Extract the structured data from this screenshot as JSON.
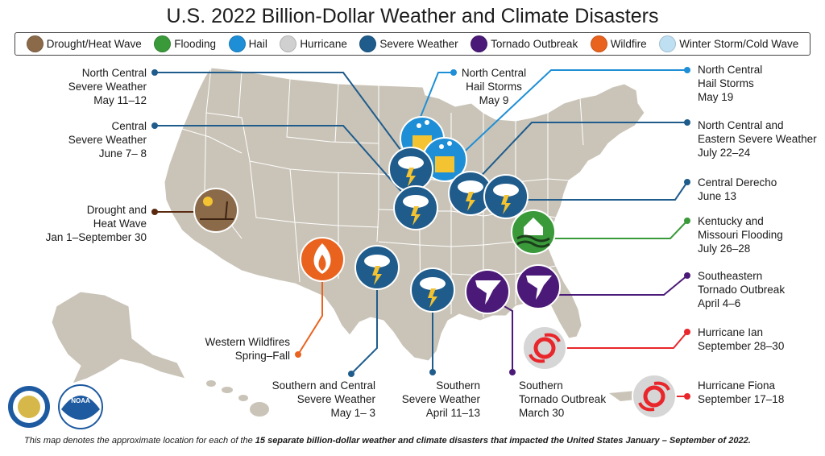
{
  "title": "U.S. 2022 Billion-Dollar Weather and Climate Disasters",
  "legend": [
    {
      "label": "Drought/Heat Wave",
      "icon": "drought-icon",
      "color": "#8b6a4a"
    },
    {
      "label": "Flooding",
      "icon": "flood-icon",
      "color": "#3a9a3a"
    },
    {
      "label": "Hail",
      "icon": "hail-icon",
      "color": "#1e8fd6"
    },
    {
      "label": "Hurricane",
      "icon": "hurricane-icon",
      "color": "#d0d0d0"
    },
    {
      "label": "Severe Weather",
      "icon": "severe-weather-icon",
      "color": "#1f5c8c"
    },
    {
      "label": "Tornado Outbreak",
      "icon": "tornado-icon",
      "color": "#4b1a78"
    },
    {
      "label": "Wildfire",
      "icon": "wildfire-icon",
      "color": "#e9631f"
    },
    {
      "label": "Winter Storm/Cold Wave",
      "icon": "winter-storm-icon",
      "color": "#bfe0f2"
    }
  ],
  "events": [
    {
      "type": "Severe Weather",
      "lines": [
        "North Central",
        "Severe Weather",
        "May 11–12"
      ],
      "color": "#1f5c8c"
    },
    {
      "type": "Severe Weather",
      "lines": [
        "Central",
        "Severe Weather",
        "June 7– 8"
      ],
      "color": "#1f5c8c"
    },
    {
      "type": "Drought/Heat Wave",
      "lines": [
        "Drought and",
        "Heat Wave",
        "Jan 1–September 30"
      ],
      "color": "#5a2a10"
    },
    {
      "type": "Wildfire",
      "lines": [
        "Western Wildfires",
        "Spring–Fall"
      ],
      "color": "#e9631f"
    },
    {
      "type": "Severe Weather",
      "lines": [
        "Southern and Central",
        "Severe Weather",
        "May 1– 3"
      ],
      "color": "#1f5c8c"
    },
    {
      "type": "Severe Weather",
      "lines": [
        "Southern",
        "Severe Weather",
        "April 11–13"
      ],
      "color": "#1f5c8c"
    },
    {
      "type": "Tornado Outbreak",
      "lines": [
        "Southern",
        "Tornado Outbreak",
        "March 30"
      ],
      "color": "#4b1a78"
    },
    {
      "type": "Hail",
      "lines": [
        "North Central",
        "Hail Storms",
        "May 9"
      ],
      "color": "#1e8fd6"
    },
    {
      "type": "Hail",
      "lines": [
        "North Central",
        "Hail Storms",
        "May 19"
      ],
      "color": "#1e8fd6"
    },
    {
      "type": "Severe Weather",
      "lines": [
        "North Central and",
        "Eastern Severe Weather",
        "July 22–24"
      ],
      "color": "#1f5c8c"
    },
    {
      "type": "Severe Weather",
      "lines": [
        "Central Derecho",
        "June 13"
      ],
      "color": "#1f5c8c"
    },
    {
      "type": "Flooding",
      "lines": [
        "Kentucky and",
        "Missouri Flooding",
        "July 26–28"
      ],
      "color": "#3a9a3a"
    },
    {
      "type": "Tornado Outbreak",
      "lines": [
        "Southeastern",
        "Tornado Outbreak",
        "April 4–6"
      ],
      "color": "#4b1a78"
    },
    {
      "type": "Hurricane",
      "lines": [
        "Hurricane Ian",
        "September 28–30"
      ],
      "color": "#e8262b"
    },
    {
      "type": "Hurricane",
      "lines": [
        "Hurricane Fiona",
        "September 17–18"
      ],
      "color": "#e8262b"
    }
  ],
  "footer": {
    "prefix": "This map denotes the approximate location for each of the ",
    "bold": "15 separate billion-dollar weather and climate disasters that impacted the United States January – September of 2022."
  },
  "logos": {
    "noaa": "NOAA"
  },
  "colors": {
    "land": "#cac4b8",
    "land_border": "#ffffff",
    "background": "#ffffff"
  }
}
